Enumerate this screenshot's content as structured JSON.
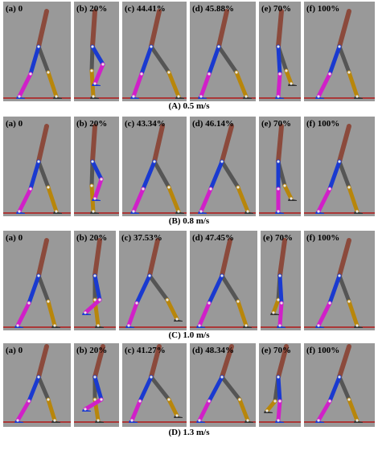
{
  "rows": [
    {
      "caption": "(A)  0.5 m/s",
      "panels": [
        {
          "label": "(a) 0",
          "pose": "A-a"
        },
        {
          "label": "(b) 20%",
          "pose": "A-b"
        },
        {
          "label": "(c) 44.41%",
          "pose": "A-c"
        },
        {
          "label": "(d) 45.88%",
          "pose": "A-d"
        },
        {
          "label": "(e) 70%",
          "pose": "A-e"
        },
        {
          "label": "(f) 100%",
          "pose": "A-f"
        }
      ]
    },
    {
      "caption": "(B)  0.8 m/s",
      "panels": [
        {
          "label": "(a) 0",
          "pose": "B-a"
        },
        {
          "label": "(b) 20%",
          "pose": "B-b"
        },
        {
          "label": "(c) 43.34%",
          "pose": "B-c"
        },
        {
          "label": "(d) 46.14%",
          "pose": "B-d"
        },
        {
          "label": "(e) 70%",
          "pose": "B-e"
        },
        {
          "label": "(f) 100%",
          "pose": "B-f"
        }
      ]
    },
    {
      "caption": "(C)  1.0 m/s",
      "panels": [
        {
          "label": "(a) 0",
          "pose": "C-a"
        },
        {
          "label": "(b) 20%",
          "pose": "C-b"
        },
        {
          "label": "(c) 37.53%",
          "pose": "C-c"
        },
        {
          "label": "(d) 47.45%",
          "pose": "C-d"
        },
        {
          "label": "(e) 70%",
          "pose": "C-e"
        },
        {
          "label": "(f) 100%",
          "pose": "C-f"
        }
      ]
    },
    {
      "caption": "(D)  1.3 m/s",
      "panels": [
        {
          "label": "(a) 0",
          "pose": "D-a"
        },
        {
          "label": "(b) 20%",
          "pose": "D-b"
        },
        {
          "label": "(c) 41.27%",
          "pose": "D-c"
        },
        {
          "label": "(d) 48.34%",
          "pose": "D-d"
        },
        {
          "label": "(e) 70%",
          "pose": "D-e"
        },
        {
          "label": "(f) 100%",
          "pose": "D-f"
        }
      ]
    }
  ],
  "colors": {
    "background": "#999999",
    "ground": "#b01818",
    "trunk": "#8b4a3c",
    "thigh_dark": "#555555",
    "thigh_blue": "#1a3ad0",
    "shank_magenta": "#d020c8",
    "shank_gold": "#b8860b",
    "foot_blue": "#1a3ad0",
    "foot_dark": "#333333",
    "joint": "#e8e8e8"
  }
}
